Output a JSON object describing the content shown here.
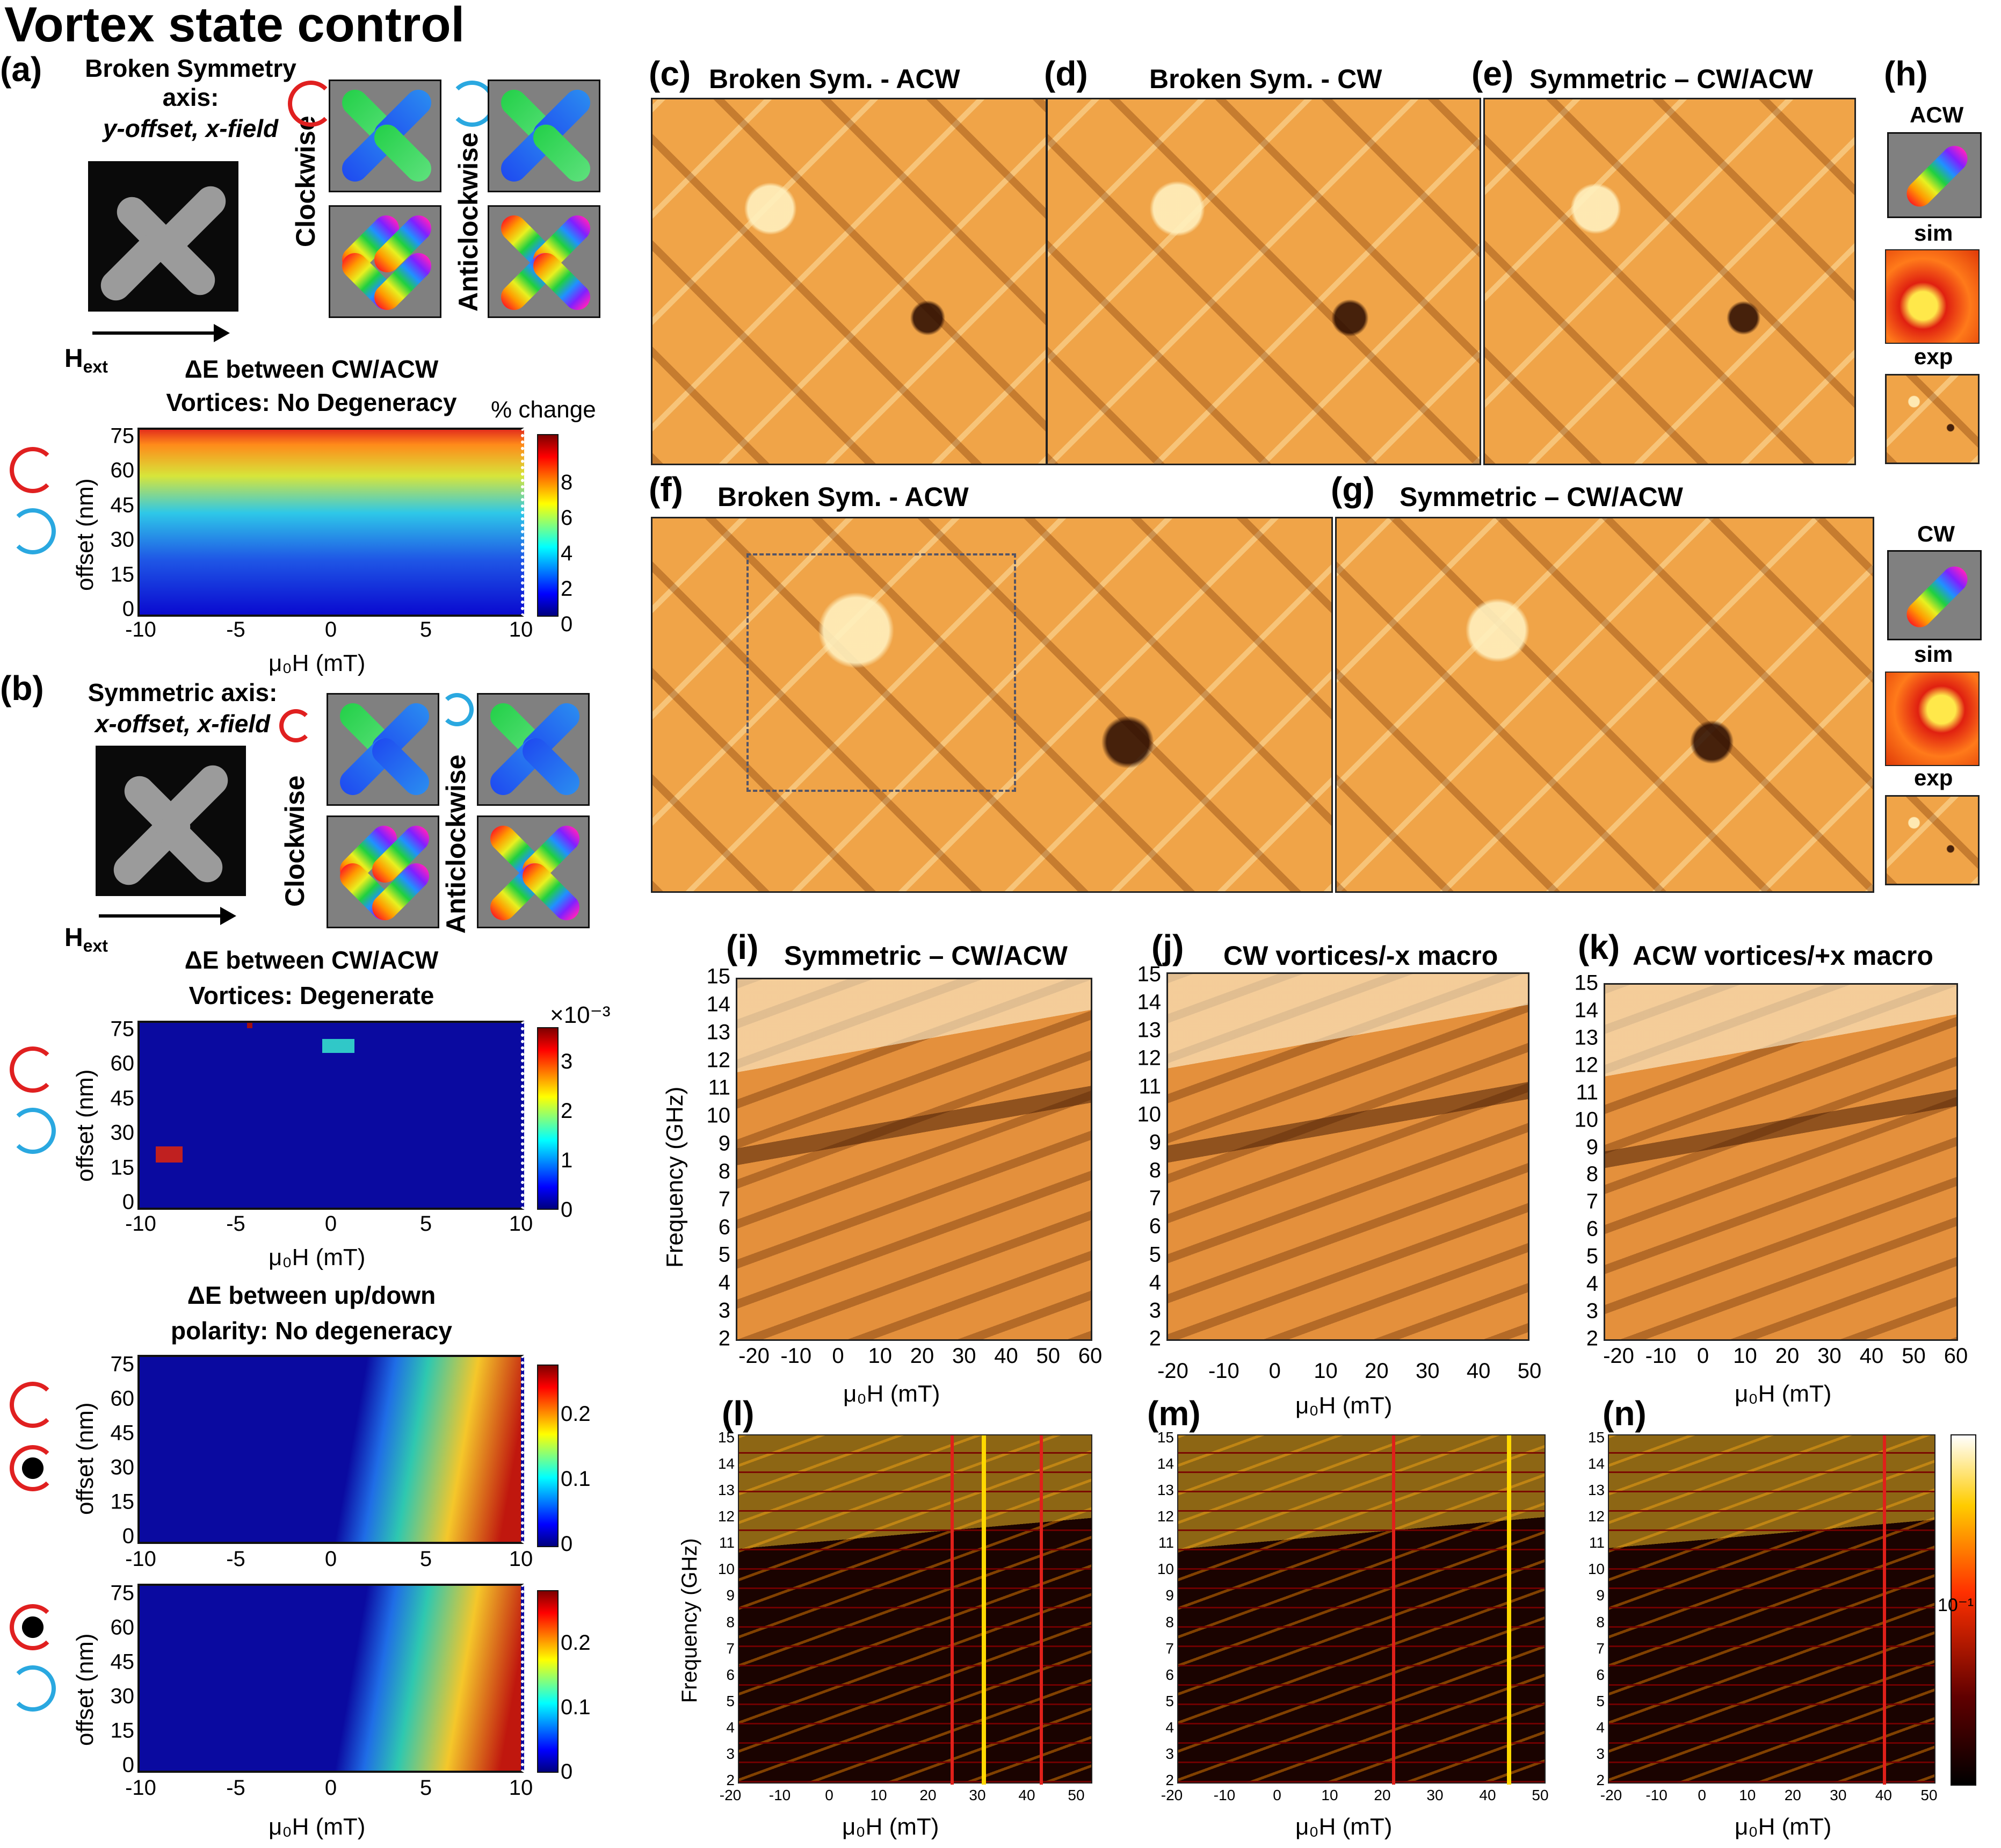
{
  "figure": {
    "title": "Vortex state control",
    "a": {
      "label": "(a)",
      "heading": "Broken Symmetry axis:",
      "subheading": "y-offset, x-field",
      "hext": "H",
      "hext_sub": "ext",
      "cw": "Clockwise",
      "acw": "Anticlockwise"
    },
    "heat1": {
      "title1": "ΔE between CW/ACW",
      "title2": "Vortices: No Degeneracy",
      "cbar_label": "% change",
      "cbar_ticks": [
        "8",
        "6",
        "4",
        "2",
        "0"
      ],
      "ylabel": "offset (nm)",
      "yticks": [
        "75",
        "60",
        "45",
        "30",
        "15",
        "0"
      ],
      "xticks": [
        "-10",
        "-5",
        "0",
        "5",
        "10"
      ],
      "xlabel": "μ₀H (mT)"
    },
    "b": {
      "label": "(b)",
      "heading": "Symmetric axis:",
      "subheading": "x-offset, x-field",
      "hext": "H",
      "hext_sub": "ext",
      "cw": "Clockwise",
      "acw": "Anticlockwise"
    },
    "heat2": {
      "title1": "ΔE between CW/ACW",
      "title2": "Vortices: Degenerate",
      "cbar_exp": "×10⁻³",
      "cbar_ticks": [
        "3",
        "2",
        "1",
        "0"
      ],
      "ylabel": "offset (nm)",
      "yticks": [
        "75",
        "60",
        "45",
        "30",
        "15",
        "0"
      ],
      "xticks": [
        "-10",
        "-5",
        "0",
        "5",
        "10"
      ],
      "xlabel": "μ₀H (mT)"
    },
    "heat3": {
      "title1": "ΔE between up/down",
      "title2": "polarity: No degeneracy",
      "cbar_ticks": [
        "0.2",
        "0.1",
        "0"
      ],
      "ylabel": "offset (nm)",
      "yticks": [
        "75",
        "60",
        "45",
        "30",
        "15",
        "0"
      ],
      "xticks": [
        "-10",
        "-5",
        "0",
        "5",
        "10"
      ]
    },
    "heat4": {
      "cbar_ticks": [
        "0.2",
        "0.1",
        "0"
      ],
      "ylabel": "offset (nm)",
      "yticks": [
        "75",
        "60",
        "45",
        "30",
        "15",
        "0"
      ],
      "xticks": [
        "-10",
        "-5",
        "0",
        "5",
        "10"
      ],
      "xlabel": "μ₀H (mT)"
    },
    "c": {
      "label": "(c)",
      "title": "Broken Sym. - ACW"
    },
    "d": {
      "label": "(d)",
      "title": "Broken Sym. - CW"
    },
    "e": {
      "label": "(e)",
      "title": "Symmetric – CW/ACW"
    },
    "f": {
      "label": "(f)",
      "title": "Broken Sym. - ACW"
    },
    "g": {
      "label": "(g)",
      "title": "Symmetric – CW/ACW"
    },
    "h": {
      "label": "(h)",
      "acw": "ACW",
      "cw": "CW",
      "sim": "sim",
      "exp": "exp"
    },
    "i": {
      "label": "(i)",
      "title": "Symmetric – CW/ACW"
    },
    "j": {
      "label": "(j)",
      "title": "CW vortices/-x macro"
    },
    "k": {
      "label": "(k)",
      "title": "ACW vortices/+x macro"
    },
    "spec_common": {
      "ylabel": "Frequency (GHz)",
      "yticks": [
        "15",
        "14",
        "13",
        "12",
        "11",
        "10",
        "9",
        "8",
        "7",
        "6",
        "5",
        "4",
        "3",
        "2"
      ],
      "xlabel": "μ₀H (mT)",
      "xticks_i": [
        "-20",
        "-10",
        "0",
        "10",
        "20",
        "30",
        "40",
        "50",
        "60"
      ],
      "xticks_j": [
        "-20",
        "-10",
        "0",
        "10",
        "20",
        "30",
        "40",
        "50"
      ],
      "xticks_k": [
        "-20",
        "-10",
        "0",
        "10",
        "20",
        "30",
        "40",
        "50",
        "60"
      ]
    },
    "l": {
      "label": "(l)"
    },
    "m": {
      "label": "(m)"
    },
    "n": {
      "label": "(n)"
    },
    "sim_common": {
      "ylabel": "Frequency (GHz)",
      "yticks": [
        "15",
        "14",
        "13",
        "12",
        "11",
        "10",
        "9",
        "8",
        "7",
        "6",
        "5",
        "4",
        "3",
        "2"
      ],
      "xticks": [
        "-20",
        "-10",
        "0",
        "10",
        "20",
        "30",
        "40",
        "50"
      ],
      "xlabel": "μ₀H (mT)",
      "cbar_label": "10⁻¹"
    }
  }
}
